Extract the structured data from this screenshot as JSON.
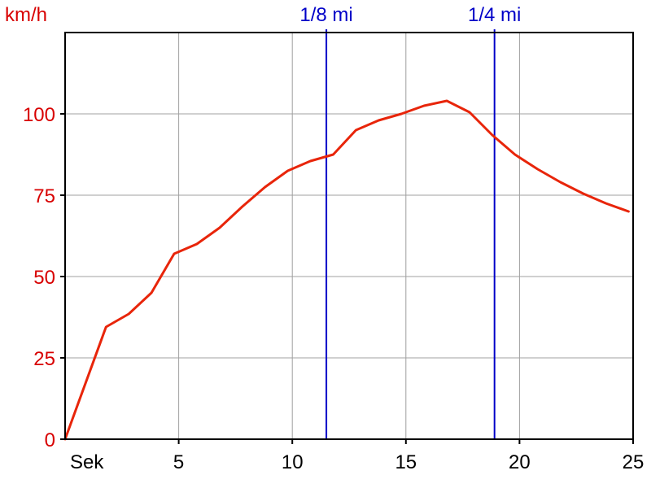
{
  "chart_data": {
    "type": "line",
    "ylabel": "km/h",
    "xlabel": "Sek",
    "xlim": [
      0,
      25
    ],
    "ylim": [
      0,
      125
    ],
    "x_ticks": [
      5,
      10,
      15,
      20,
      25
    ],
    "y_ticks": [
      0,
      25,
      50,
      75,
      100
    ],
    "grid": true,
    "series": [
      {
        "x": [
          0,
          1.8,
          2.8,
          3.8,
          4.8,
          5.8,
          6.8,
          7.8,
          8.8,
          9.8,
          10.8,
          11.8,
          12.8,
          13.8,
          14.8,
          15.8,
          16.8,
          17.8,
          18.8,
          19.8,
          20.8,
          21.8,
          22.8,
          23.8,
          24.8
        ],
        "values": [
          0,
          34.5,
          38.5,
          45,
          57,
          60,
          65,
          71.5,
          77.5,
          82.5,
          85.5,
          87.5,
          95,
          98,
          100,
          102.5,
          104,
          100.5,
          93.5,
          87.5,
          83,
          79,
          75.5,
          72.5,
          70
        ]
      }
    ],
    "markers": [
      {
        "label": "1/8 mi",
        "x": 11.5
      },
      {
        "label": "1/4 mi",
        "x": 18.9
      }
    ]
  },
  "colors": {
    "line": "#e8250a",
    "marker": "#0000c8",
    "axis_text_y": "#d80000",
    "grid": "#a0a0a0",
    "frame": "#000000"
  }
}
